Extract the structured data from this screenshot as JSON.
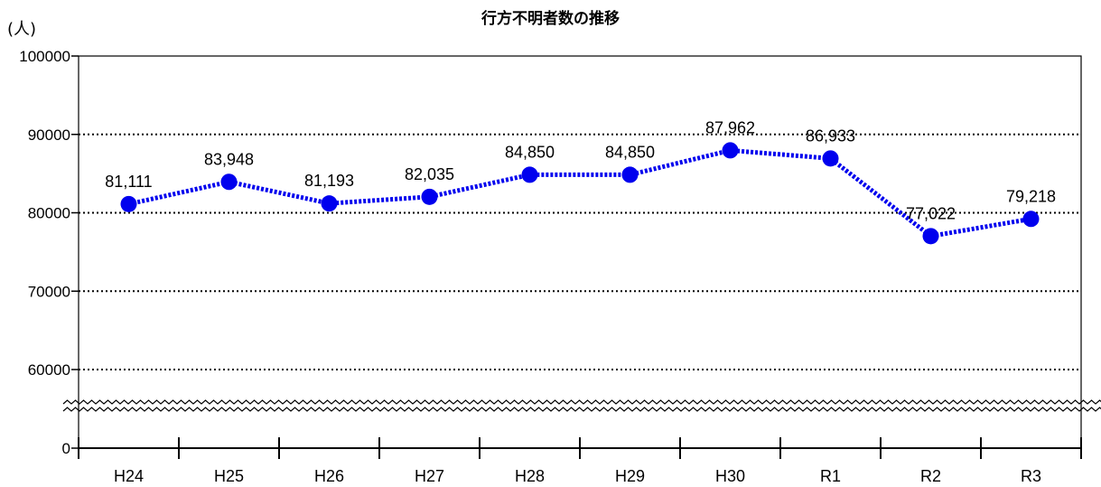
{
  "chart_data": {
    "type": "line",
    "title": "行方不明者数の推移",
    "ylabel": "(人)",
    "xlabel": "",
    "categories": [
      "H24",
      "H25",
      "H26",
      "H27",
      "H28",
      "H29",
      "H30",
      "R1",
      "R2",
      "R3"
    ],
    "series": [
      {
        "values": [
          81111,
          83948,
          81193,
          82035,
          84850,
          84850,
          87962,
          86933,
          77022,
          79218
        ],
        "labels": [
          "81,111",
          "83,948",
          "81,193",
          "82,035",
          "84,850",
          "84,850",
          "87,962",
          "86,933",
          "77,022",
          "79,218"
        ]
      }
    ],
    "yticks": [
      "100000",
      "90000",
      "80000",
      "70000",
      "60000",
      "0"
    ],
    "ylim": [
      60000,
      100000
    ],
    "axis_break": true,
    "grid": "horizontal-dotted",
    "colors": {
      "series": "#0000ee",
      "grid": "#000000"
    }
  }
}
